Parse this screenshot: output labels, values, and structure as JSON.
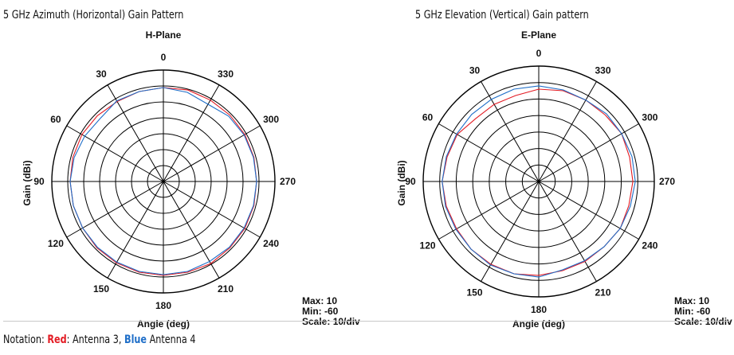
{
  "captions": {
    "left": "5 GHz Azimuth  (Horizontal) Gain Pattern",
    "right": "5 GHz Elevation (Vertical) Gain pattern"
  },
  "notation": {
    "prefix": "Notation: ",
    "red_word": "Red",
    "red_label": ": Antenna 3, ",
    "blue_word": "Blue",
    "blue_label": " Antenna 4"
  },
  "colors": {
    "red": "#e31b23",
    "blue": "#1e6ec8",
    "grid": "#000000"
  },
  "chart_data": [
    {
      "type": "polar-line",
      "title": "H-Plane",
      "xlabel": "Angle  (deg)",
      "ylabel": "Gain  (dBi)",
      "angle_ticks": [
        "0",
        "30",
        "60",
        "90",
        "120",
        "150",
        "180",
        "210",
        "240",
        "270",
        "300",
        "330"
      ],
      "range": [
        -60,
        10
      ],
      "rings": 7,
      "info": {
        "max": "Max: 10",
        "min": "Min: -60",
        "scale": "Scale: 10/div"
      },
      "series": [
        {
          "color": "red",
          "angles": [
            0,
            15,
            30,
            45,
            60,
            75,
            90,
            105,
            120,
            135,
            150,
            165,
            180,
            195,
            210,
            225,
            240,
            255,
            270,
            285,
            300,
            315,
            330,
            345
          ],
          "values": [
            -1,
            -1.5,
            -2,
            -1.5,
            -1,
            -1.2,
            -1.5,
            -1.5,
            -1.5,
            -1,
            -1,
            -1,
            -1,
            -1,
            -0.5,
            -1,
            -1,
            -1.2,
            -1.5,
            -1.2,
            -1,
            -1,
            -1,
            -0.5
          ]
        },
        {
          "color": "blue",
          "angles": [
            0,
            15,
            30,
            45,
            60,
            75,
            90,
            105,
            120,
            135,
            150,
            165,
            180,
            195,
            210,
            225,
            240,
            255,
            270,
            285,
            300,
            315,
            330,
            345
          ],
          "values": [
            -1,
            -1.5,
            -1.5,
            -4,
            -3,
            -2,
            -1.5,
            -1.5,
            -1.5,
            -1.5,
            -1.5,
            -1.5,
            -1.5,
            -1.5,
            -2,
            -1.5,
            -1.5,
            -1.5,
            -1.5,
            -1.5,
            -1.5,
            -2,
            -4,
            -2
          ]
        }
      ]
    },
    {
      "type": "polar-line",
      "title": "E-Plane",
      "xlabel": "Angle  (deg)",
      "ylabel": "Gain  (dBi)",
      "angle_ticks": [
        "0",
        "30",
        "60",
        "90",
        "120",
        "150",
        "180",
        "210",
        "240",
        "270",
        "300",
        "330"
      ],
      "range": [
        -60,
        10
      ],
      "rings": 7,
      "info": {
        "max": "Max: 10",
        "min": "Min: -60",
        "scale": "Scale: 10/div"
      },
      "series": [
        {
          "color": "red",
          "angles": [
            0,
            15,
            30,
            45,
            60,
            75,
            90,
            105,
            120,
            135,
            150,
            165,
            180,
            195,
            210,
            225,
            240,
            255,
            270,
            285,
            300,
            315,
            330,
            345
          ],
          "values": [
            -4,
            -6,
            -6,
            -6,
            -3,
            -2.5,
            -1.5,
            -2,
            -2.5,
            -2,
            -2,
            -2,
            -3,
            -4,
            -4,
            -4,
            -3,
            -3.5,
            -3,
            -3,
            -2,
            -3,
            -3,
            -3
          ]
        },
        {
          "color": "blue",
          "angles": [
            0,
            15,
            30,
            45,
            60,
            75,
            90,
            105,
            120,
            135,
            150,
            165,
            180,
            195,
            210,
            225,
            240,
            255,
            270,
            285,
            300,
            315,
            330,
            345
          ],
          "values": [
            -2,
            -2,
            -2.5,
            -2.5,
            -2.5,
            -2,
            -1.5,
            -1.5,
            -2,
            -2,
            -1.5,
            -2,
            -2,
            -4.5,
            -4.5,
            -4,
            -3,
            -2.5,
            -1.5,
            -1.5,
            -2,
            -2,
            -3,
            -2.5
          ]
        }
      ]
    }
  ]
}
